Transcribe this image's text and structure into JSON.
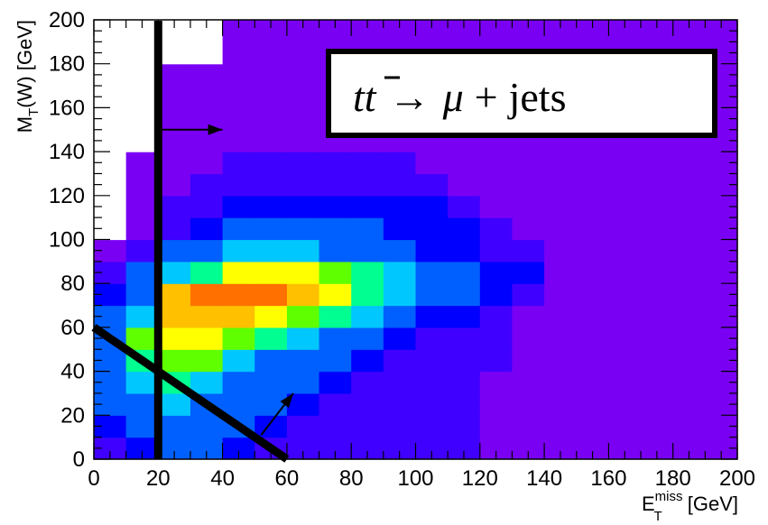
{
  "chart_data": {
    "type": "heatmap",
    "x_label": {
      "main": "E",
      "sup": "miss",
      "sub": "T",
      "unit": " [GeV]"
    },
    "y_label": {
      "main": "M",
      "sub": "T",
      "rest": "(W) [GeV]"
    },
    "xlim": [
      0,
      200
    ],
    "ylim": [
      0,
      200
    ],
    "x_ticks": [
      "0",
      "20",
      "40",
      "60",
      "80",
      "100",
      "120",
      "140",
      "160",
      "180",
      "200"
    ],
    "y_ticks": [
      "0",
      "20",
      "40",
      "60",
      "80",
      "100",
      "120",
      "140",
      "160",
      "180",
      "200"
    ],
    "bin_width_x": 10,
    "bin_width_y": 10,
    "z_max": 12,
    "z_colorscale": [
      "#7600ff",
      "#4000ff",
      "#0000ff",
      "#0060ff",
      "#00c8ff",
      "#00ff90",
      "#60ff00",
      "#ffff00",
      "#ffc000",
      "#ff7000",
      "#ff0000"
    ],
    "empty_color": "#ffffff",
    "zero_color": "#7a00f4",
    "legend_box": {
      "parts": [
        "t",
        "t",
        "→",
        "μ",
        "+",
        "jets"
      ],
      "bar_on": 1
    },
    "cuts": {
      "vertical_line_x": 20,
      "diagonal_line": {
        "from": [
          0,
          60
        ],
        "to": [
          60,
          0
        ]
      },
      "arrows": [
        {
          "from": [
            20,
            150
          ],
          "to": [
            40,
            150
          ]
        },
        {
          "from": [
            52,
            11
          ],
          "to": [
            62,
            30
          ]
        }
      ]
    },
    "bins": {
      "rows_y_start_0": [
        [
          1,
          2,
          3,
          3,
          2,
          1,
          1,
          1,
          1,
          1,
          1,
          1,
          0,
          0,
          0,
          0,
          0,
          0,
          0,
          0
        ],
        [
          2,
          3,
          4,
          4,
          3,
          2,
          1,
          1,
          1,
          1,
          1,
          1,
          0,
          0,
          0,
          0,
          0,
          0,
          0,
          0
        ],
        [
          3,
          4,
          5,
          4,
          4,
          3,
          2,
          1,
          1,
          1,
          1,
          1,
          0,
          0,
          0,
          0,
          0,
          0,
          0,
          0
        ],
        [
          3,
          5,
          6,
          5,
          4,
          3,
          3,
          2,
          1,
          1,
          1,
          1,
          0,
          0,
          0,
          0,
          0,
          0,
          0,
          0
        ],
        [
          4,
          6,
          7,
          7,
          5,
          4,
          3,
          3,
          2,
          1,
          1,
          1,
          1,
          0,
          0,
          0,
          0,
          0,
          0,
          0
        ],
        [
          3,
          7,
          8,
          8,
          7,
          6,
          5,
          4,
          3,
          2,
          1,
          1,
          1,
          0,
          0,
          0,
          0,
          0,
          0,
          0
        ],
        [
          3,
          5,
          9,
          10,
          9,
          8,
          7,
          6,
          5,
          4,
          2,
          2,
          1,
          0,
          0,
          0,
          0,
          0,
          0,
          0
        ],
        [
          2,
          4,
          9,
          11,
          11,
          11,
          10,
          8,
          6,
          5,
          4,
          3,
          2,
          1,
          0,
          0,
          0,
          0,
          0,
          0
        ],
        [
          1,
          3,
          5,
          6,
          8,
          8,
          8,
          7,
          6,
          5,
          4,
          3,
          2,
          2,
          0,
          0,
          0,
          0,
          0,
          0
        ],
        [
          0,
          1,
          3,
          4,
          5,
          5,
          5,
          4,
          3,
          3,
          2,
          2,
          1,
          1,
          0,
          0,
          0,
          0,
          0,
          0
        ],
        [
          -1,
          0,
          1,
          2,
          3,
          3,
          3,
          3,
          3,
          2,
          2,
          2,
          1,
          0,
          0,
          0,
          0,
          0,
          0,
          0
        ],
        [
          -1,
          0,
          1,
          1,
          2,
          2,
          2,
          2,
          2,
          2,
          2,
          1,
          0,
          0,
          0,
          0,
          0,
          0,
          0,
          0
        ],
        [
          -1,
          0,
          0,
          1,
          1,
          1,
          1,
          1,
          1,
          1,
          1,
          0,
          0,
          0,
          0,
          0,
          0,
          0,
          0,
          0
        ],
        [
          -1,
          0,
          0,
          0,
          1,
          1,
          1,
          1,
          1,
          1,
          0,
          0,
          0,
          0,
          0,
          0,
          0,
          0,
          0,
          0
        ],
        [
          -1,
          -1,
          0,
          0,
          0,
          0,
          0,
          0,
          0,
          0,
          0,
          0,
          0,
          0,
          0,
          0,
          0,
          0,
          0,
          0
        ],
        [
          -1,
          -1,
          0,
          0,
          0,
          0,
          0,
          0,
          0,
          0,
          0,
          0,
          0,
          0,
          0,
          0,
          0,
          0,
          0,
          0
        ],
        [
          -1,
          -1,
          0,
          0,
          0,
          0,
          0,
          0,
          0,
          0,
          0,
          0,
          0,
          0,
          0,
          0,
          0,
          0,
          0,
          0
        ],
        [
          -1,
          -1,
          0,
          0,
          0,
          0,
          0,
          0,
          0,
          0,
          0,
          0,
          0,
          0,
          0,
          0,
          0,
          0,
          0,
          0
        ],
        [
          -1,
          -1,
          -1,
          -1,
          0,
          0,
          0,
          0,
          0,
          0,
          0,
          0,
          0,
          0,
          0,
          0,
          0,
          0,
          0,
          0
        ],
        [
          -1,
          -1,
          -1,
          -1,
          0,
          0,
          0,
          0,
          0,
          0,
          0,
          0,
          0,
          0,
          0,
          0,
          0,
          0,
          0,
          0
        ]
      ]
    }
  }
}
